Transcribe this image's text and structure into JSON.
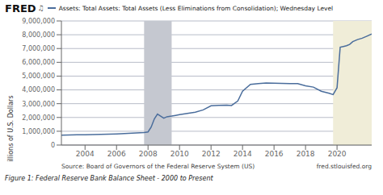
{
  "chart_data": {
    "type": "line",
    "title": "Assets: Total Assets: Total Assets (Less Eliminations from Consolidation); Wednesday Level",
    "ylabel": "Millions of U.S. Dollars",
    "annotations": [
      "FRED",
      "♫",
      "Source: Board of Governors of the Federal Reserve System (US)",
      "fred.stlouisfed.org",
      "Figure 1: Federal Reserve Bank Balance Sheet - 2000 to Present"
    ],
    "color": "#4a6d9c",
    "grid": true,
    "xlim": [
      2002.5,
      2022.2
    ],
    "xticks": [
      2004,
      2006,
      2008,
      2010,
      2012,
      2014,
      2016,
      2018,
      2020
    ],
    "ylim": [
      0,
      9000000
    ],
    "yticks": [
      0,
      {
        "value": 1000000,
        "label": "1,000,000"
      },
      {
        "value": 2000000,
        "label": "2,000,000"
      },
      {
        "value": 3000000,
        "label": "3,000,000"
      },
      {
        "value": 4000000,
        "label": "4,000,000"
      },
      {
        "value": 5000000,
        "label": "5,000,000"
      },
      {
        "value": 6000000,
        "label": "6,000,000"
      },
      {
        "value": 7000000,
        "label": "7,000,000"
      },
      {
        "value": 8000000,
        "label": "8,000,000"
      },
      {
        "value": 9000000,
        "label": "9,000,000"
      }
    ],
    "shaded_regions": [
      {
        "x0": 2007.75,
        "x1": 2009.5,
        "color": "#c5c8d0"
      },
      {
        "x0": 2019.75,
        "x1": 2022.2,
        "color": "#f0edd8"
      }
    ],
    "x": [
      2002.5,
      2003.0,
      2003.5,
      2004.0,
      2004.5,
      2005.0,
      2005.5,
      2006.0,
      2006.5,
      2007.0,
      2007.5,
      2007.75,
      2008.0,
      2008.2,
      2008.4,
      2008.6,
      2008.8,
      2009.0,
      2009.2,
      2009.5,
      2009.75,
      2010.0,
      2010.5,
      2011.0,
      2011.5,
      2012.0,
      2012.5,
      2013.0,
      2013.3,
      2013.7,
      2014.0,
      2014.5,
      2015.0,
      2015.5,
      2016.0,
      2016.5,
      2017.0,
      2017.5,
      2018.0,
      2018.5,
      2019.0,
      2019.5,
      2019.75,
      2020.0,
      2020.2,
      2020.4,
      2020.6,
      2020.8,
      2021.0,
      2021.3,
      2021.6,
      2021.9,
      2022.2
    ],
    "values": [
      720000,
      730000,
      740000,
      750000,
      760000,
      770000,
      790000,
      810000,
      830000,
      860000,
      890000,
      910000,
      950000,
      1300000,
      1900000,
      2250000,
      2100000,
      1950000,
      2050000,
      2100000,
      2150000,
      2200000,
      2300000,
      2380000,
      2550000,
      2850000,
      2880000,
      2900000,
      2870000,
      3200000,
      3900000,
      4400000,
      4450000,
      4500000,
      4480000,
      4470000,
      4450000,
      4460000,
      4300000,
      4200000,
      3900000,
      3750000,
      3660000,
      4150000,
      7100000,
      7150000,
      7200000,
      7300000,
      7500000,
      7650000,
      7750000,
      7900000,
      8050000
    ]
  }
}
